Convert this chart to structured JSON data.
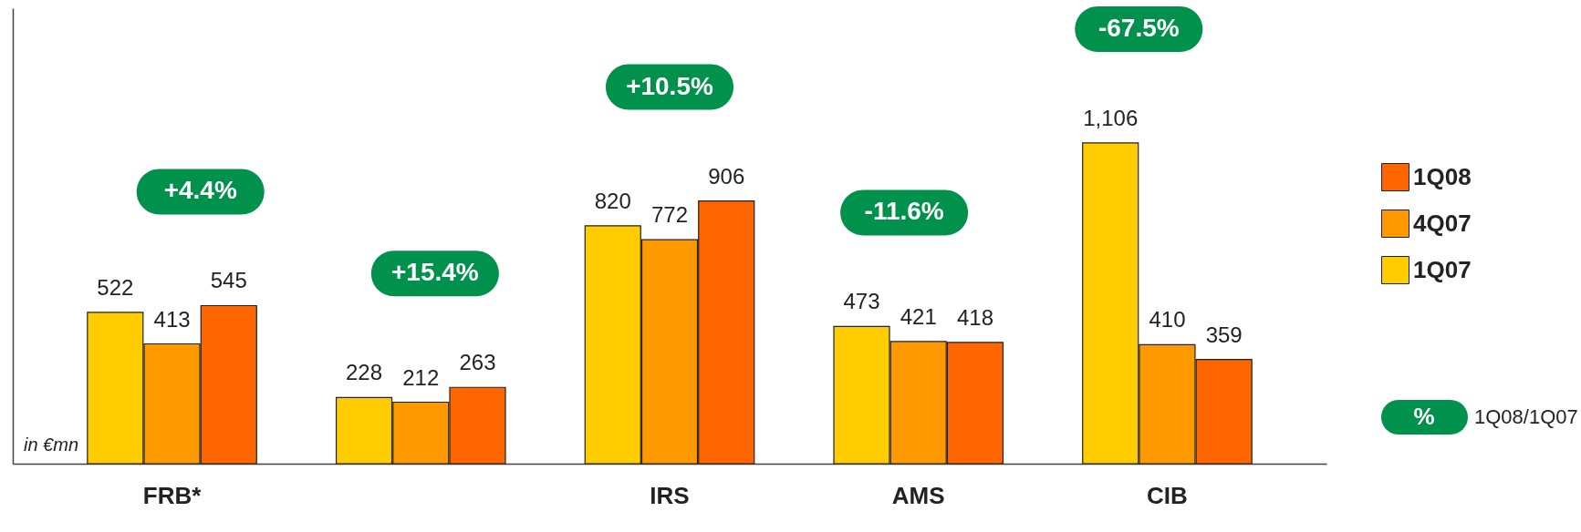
{
  "chart_data": {
    "type": "bar",
    "categories": [
      "FRB*",
      null,
      "IRS",
      "AMS",
      "CIB"
    ],
    "series": [
      {
        "name": "1Q07",
        "color": "#ffcc00",
        "values": [
          522,
          228,
          820,
          473,
          1106
        ],
        "value_labels": [
          "522",
          "228",
          "820",
          "473",
          "1,106"
        ]
      },
      {
        "name": "4Q07",
        "color": "#ff9900",
        "values": [
          413,
          212,
          772,
          421,
          410
        ],
        "value_labels": [
          "413",
          "212",
          "772",
          "421",
          "410"
        ]
      },
      {
        "name": "1Q08",
        "color": "#ff6600",
        "values": [
          545,
          263,
          906,
          418,
          359
        ],
        "value_labels": [
          "545",
          "263",
          "906",
          "418",
          "359"
        ]
      }
    ],
    "legend": "right",
    "tick_labels": "x",
    "grid": false,
    "annotations": [
      "+4.4%",
      "+15.4%",
      "+10.5%",
      "-11.6%",
      "-67.5%",
      "in €mn",
      "%",
      "1Q08/1Q07"
    ]
  }
}
